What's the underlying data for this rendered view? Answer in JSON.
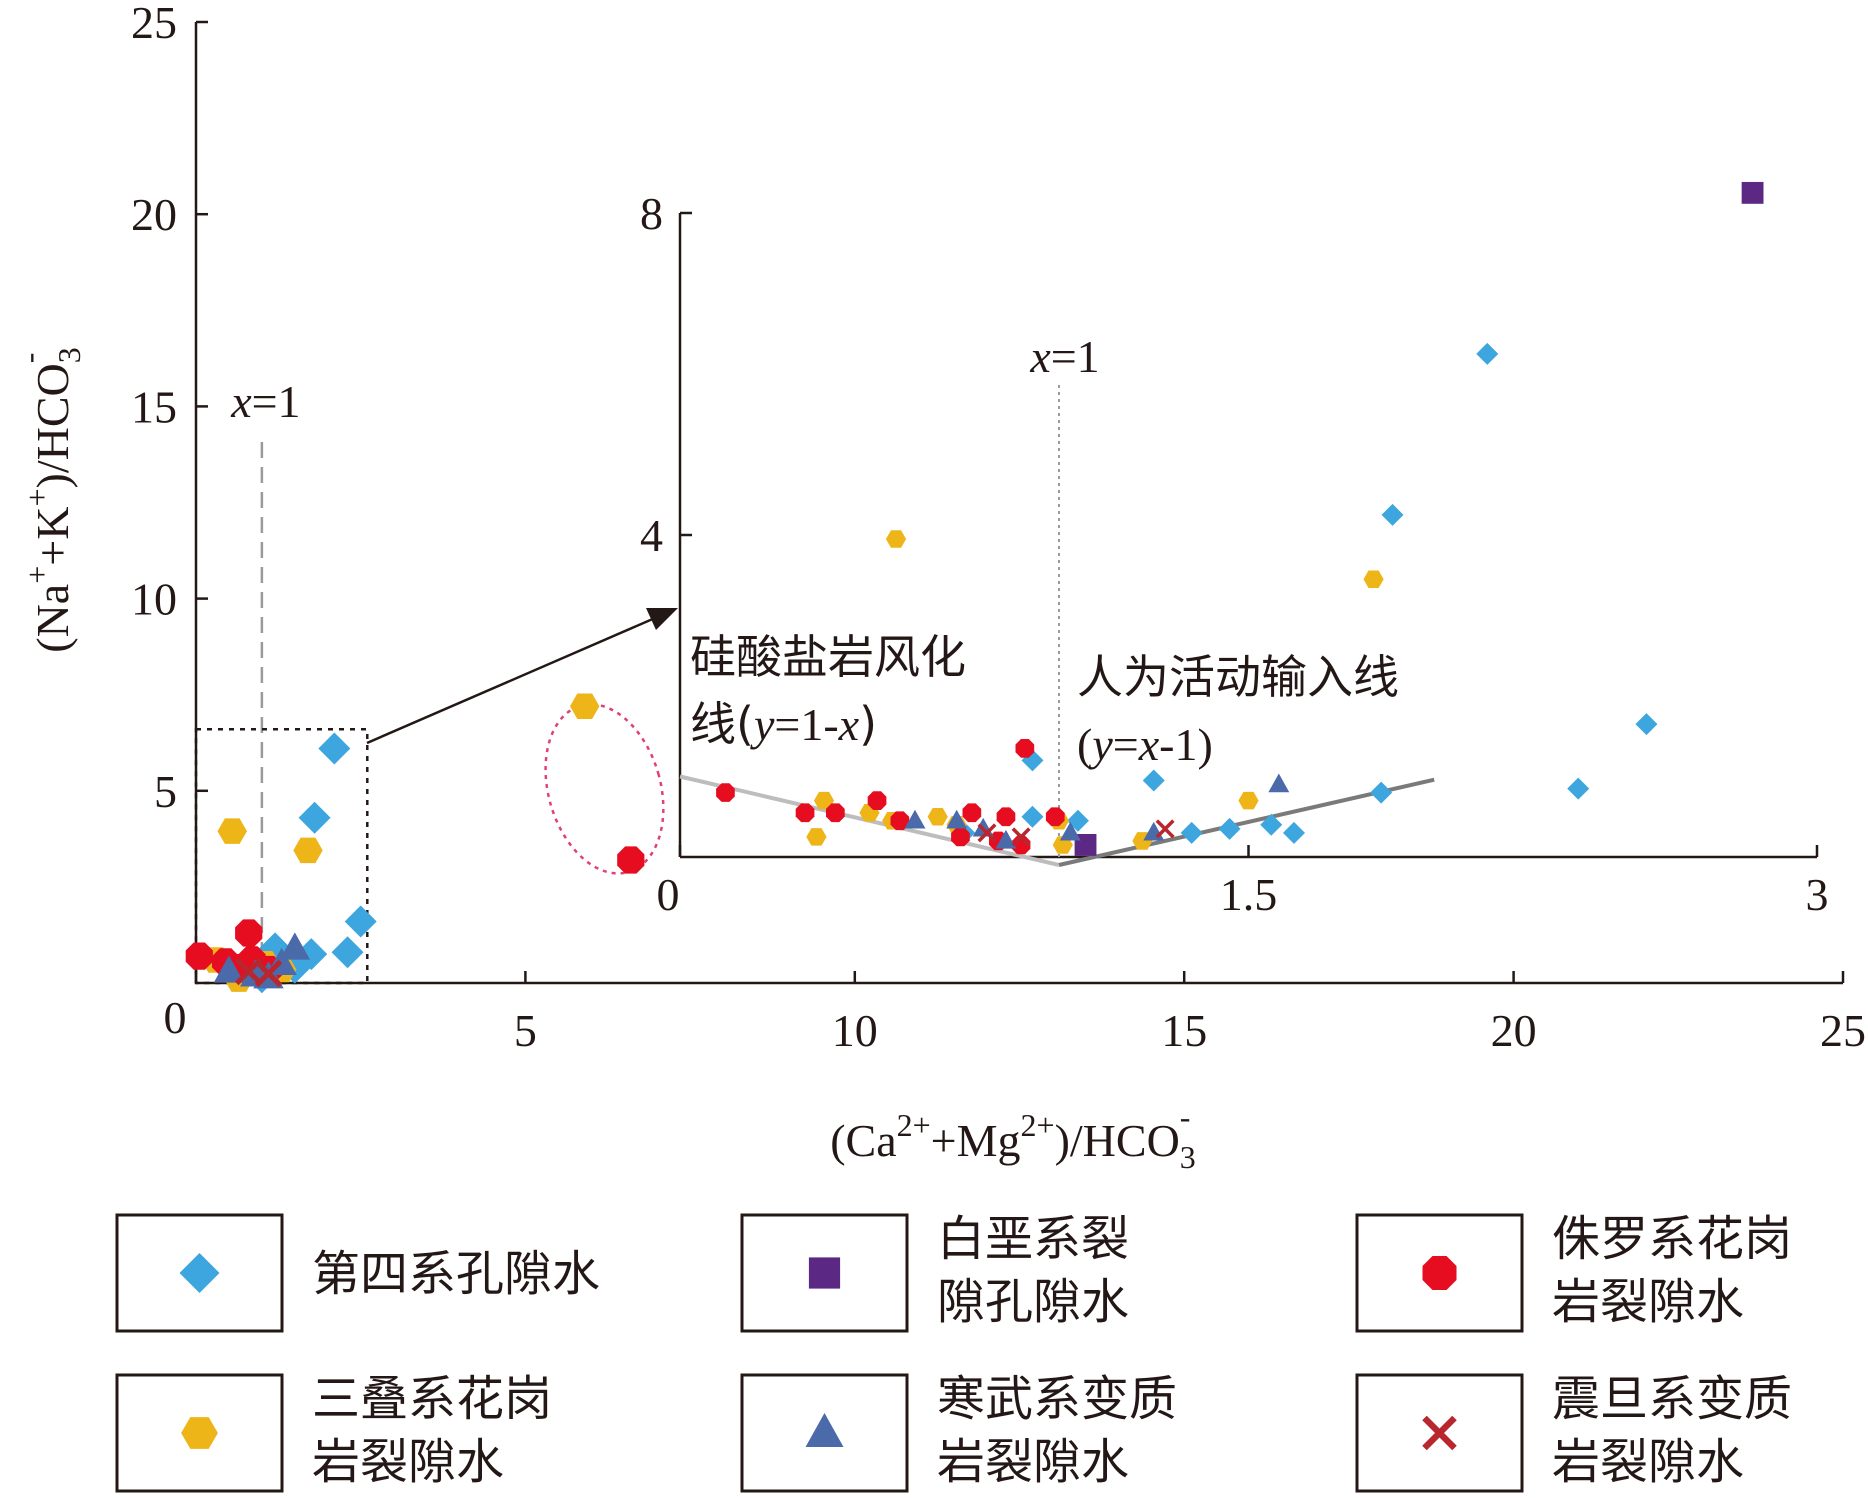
{
  "chart_data": [
    {
      "type": "scatter",
      "panel": "main",
      "xlabel": {
        "pre": "(Ca",
        "sup1": "2+",
        "mid": "+Mg",
        "sup2": "2+",
        "post": ")/HCO",
        "sub": "3",
        "sup3": "-"
      },
      "ylabel": {
        "pre": "(Na",
        "sup1": "+",
        "mid": "+K",
        "sup2": "+",
        "post": ")/HCO",
        "sub": "3",
        "sup3": "-"
      },
      "xlim": [
        0,
        25
      ],
      "ylim": [
        0,
        25
      ],
      "x_ticks": [
        0,
        5,
        10,
        15,
        20,
        25
      ],
      "y_ticks": [
        5,
        10,
        15,
        20,
        25
      ],
      "origin_label": "0",
      "reference_line": {
        "x": 1,
        "label_var": "x",
        "label_rest": "=1"
      },
      "zoom_box": {
        "x": [
          0,
          2.6
        ],
        "y": [
          0,
          6.6
        ]
      },
      "highlight_ellipse": {
        "cx": 6.2,
        "cy": 5.05,
        "rx": 0.85,
        "ry": 2.25
      },
      "series": [
        {
          "name": "第四系孔隙水",
          "marker": "diamond",
          "color": "#3ea6df",
          "points": [
            [
              2.1,
              6.1
            ],
            [
              1.8,
              4.3
            ],
            [
              2.5,
              1.6
            ],
            [
              2.3,
              0.8
            ],
            [
              1.75,
              0.75
            ],
            [
              1.2,
              0.9
            ],
            [
              0.9,
              0.5
            ],
            [
              1.5,
              0.4
            ],
            [
              0.7,
              0.25
            ],
            [
              1.0,
              0.15
            ]
          ]
        },
        {
          "name": "三叠系花岗岩裂隙水",
          "marker": "hexagon",
          "color": "#eeb518",
          "points": [
            [
              0.55,
              3.95
            ],
            [
              1.7,
              3.45
            ],
            [
              5.9,
              7.2
            ],
            [
              0.3,
              0.6
            ],
            [
              0.5,
              0.45
            ],
            [
              0.8,
              0.25
            ],
            [
              1.05,
              0.5
            ],
            [
              1.3,
              0.35
            ],
            [
              0.65,
              0.1
            ]
          ]
        },
        {
          "name": "侏罗系花岗岩裂隙水",
          "marker": "octagon",
          "color": "#e60d21",
          "points": [
            [
              6.6,
              3.2
            ],
            [
              0.8,
              1.3
            ],
            [
              0.05,
              0.7
            ],
            [
              0.45,
              0.55
            ],
            [
              0.85,
              0.6
            ],
            [
              1.1,
              0.35
            ],
            [
              0.6,
              0.4
            ]
          ]
        },
        {
          "name": "寒武系变质岩裂隙水",
          "marker": "triangle",
          "color": "#4a6aaa",
          "points": [
            [
              1.5,
              0.9
            ],
            [
              1.3,
              0.5
            ],
            [
              0.5,
              0.3
            ],
            [
              0.9,
              0.2
            ],
            [
              1.1,
              0.15
            ]
          ]
        },
        {
          "name": "震旦系变质岩裂隙水",
          "marker": "cross",
          "color": "#b8272e",
          "points": [
            [
              0.8,
              0.3
            ],
            [
              1.1,
              0.25
            ]
          ]
        }
      ]
    },
    {
      "type": "scatter",
      "panel": "inset",
      "xlim": [
        0,
        3
      ],
      "ylim": [
        0,
        8
      ],
      "x_ticks": [
        0,
        1.5,
        3
      ],
      "y_ticks": [
        4,
        8
      ],
      "reference_line": {
        "x": 1,
        "label_var": "x",
        "label_rest": "=1"
      },
      "silicate_line": {
        "label_line1": "硅酸盐岩风化",
        "label_line2": {
          "pre": "线(",
          "var1": "y",
          "mid": "=1-",
          "var2": "x",
          "post": ")"
        },
        "points": [
          [
            0,
            1
          ],
          [
            1,
            0
          ]
        ]
      },
      "human_line": {
        "label_line1": "人为活动输入线",
        "label_line2": {
          "pre": "(",
          "var1": "y",
          "mid": "=",
          "var2": "x",
          "post": "-1)"
        },
        "points": [
          [
            1,
            0
          ],
          [
            1.99,
            0.96
          ]
        ]
      },
      "series": [
        {
          "name": "第四系孔隙水",
          "marker": "diamond",
          "color": "#3ea6df",
          "points": [
            [
              2.13,
              6.25
            ],
            [
              1.88,
              4.25
            ],
            [
              2.55,
              1.65
            ],
            [
              2.37,
              0.85
            ],
            [
              1.85,
              0.8
            ],
            [
              1.25,
              0.95
            ],
            [
              0.93,
              0.5
            ],
            [
              1.56,
              0.4
            ],
            [
              0.75,
              0.3
            ],
            [
              1.05,
              0.45
            ],
            [
              1.35,
              0.3
            ],
            [
              1.45,
              0.35
            ],
            [
              1.62,
              0.3
            ],
            [
              0.93,
              1.2
            ]
          ]
        },
        {
          "name": "白垩系裂隙孔隙水",
          "marker": "square",
          "color": "#5b2884",
          "points": [
            [
              2.83,
              8.25
            ],
            [
              1.07,
              0.15
            ]
          ]
        },
        {
          "name": "三叠系花岗岩裂隙水",
          "marker": "hexagon",
          "color": "#eeb518",
          "points": [
            [
              0.57,
              3.95
            ],
            [
              1.83,
              3.45
            ],
            [
              0.38,
              0.7
            ],
            [
              0.5,
              0.55
            ],
            [
              0.56,
              0.45
            ],
            [
              0.68,
              0.5
            ],
            [
              0.73,
              0.4
            ],
            [
              0.36,
              0.25
            ],
            [
              1.0,
              0.45
            ],
            [
              1.01,
              0.15
            ],
            [
              1.22,
              0.2
            ],
            [
              1.5,
              0.7
            ]
          ]
        },
        {
          "name": "侏罗系花岗岩裂隙水",
          "marker": "octagon",
          "color": "#e60d21",
          "points": [
            [
              0.12,
              0.8
            ],
            [
              0.33,
              0.55
            ],
            [
              0.41,
              0.55
            ],
            [
              0.52,
              0.7
            ],
            [
              0.58,
              0.45
            ],
            [
              0.77,
              0.55
            ],
            [
              0.86,
              0.5
            ],
            [
              0.74,
              0.25
            ],
            [
              0.84,
              0.2
            ],
            [
              0.9,
              0.15
            ],
            [
              0.91,
              1.35
            ],
            [
              0.99,
              0.5
            ]
          ]
        },
        {
          "name": "寒武系变质岩裂隙水",
          "marker": "triangle",
          "color": "#4a6aaa",
          "points": [
            [
              1.58,
              0.9
            ],
            [
              0.62,
              0.45
            ],
            [
              0.73,
              0.45
            ],
            [
              0.8,
              0.35
            ],
            [
              1.03,
              0.3
            ],
            [
              1.25,
              0.3
            ],
            [
              0.86,
              0.2
            ]
          ]
        },
        {
          "name": "震旦系变质岩裂隙水",
          "marker": "cross",
          "color": "#b8272e",
          "points": [
            [
              0.81,
              0.3
            ],
            [
              0.9,
              0.25
            ],
            [
              1.28,
              0.35
            ]
          ]
        }
      ]
    }
  ],
  "legend": [
    {
      "marker": "diamond",
      "color": "#3ea6df",
      "lines": [
        "第四系孔隙水"
      ]
    },
    {
      "marker": "square",
      "color": "#5b2884",
      "lines": [
        "白垩系裂",
        "隙孔隙水"
      ]
    },
    {
      "marker": "octagon",
      "color": "#e60d21",
      "lines": [
        "侏罗系花岗",
        "岩裂隙水"
      ]
    },
    {
      "marker": "hexagon",
      "color": "#eeb518",
      "lines": [
        "三叠系花岗",
        "岩裂隙水"
      ]
    },
    {
      "marker": "triangle",
      "color": "#4a6aaa",
      "lines": [
        "寒武系变质",
        "岩裂隙水"
      ]
    },
    {
      "marker": "cross",
      "color": "#b8272e",
      "lines": [
        "震旦系变质",
        "岩裂隙水"
      ]
    }
  ]
}
